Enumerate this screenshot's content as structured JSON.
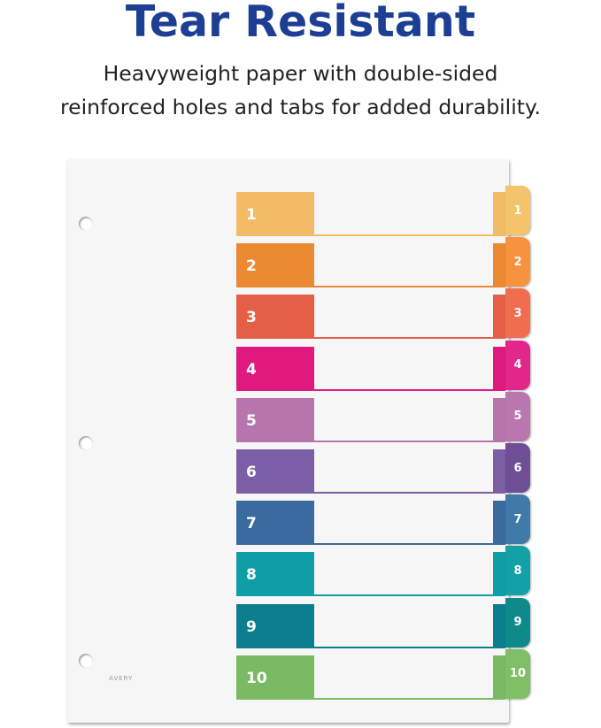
{
  "header": {
    "title": "Tear Resistant",
    "subtitle_line1": "Heavyweight paper with double-sided",
    "subtitle_line2": "reinforced holes and tabs for added durability."
  },
  "logo_text": "AVERY",
  "tabs": [
    {
      "label": "1",
      "color": "#f2bb66",
      "tab_color": "#f4c46a"
    },
    {
      "label": "2",
      "color": "#ec8a33",
      "tab_color": "#f7923e"
    },
    {
      "label": "3",
      "color": "#e45f45",
      "tab_color": "#f06e50"
    },
    {
      "label": "4",
      "color": "#e0197f",
      "tab_color": "#e3278a"
    },
    {
      "label": "5",
      "color": "#b675ad",
      "tab_color": "#b977b0"
    },
    {
      "label": "6",
      "color": "#7c5ea6",
      "tab_color": "#6e4f96"
    },
    {
      "label": "7",
      "color": "#3a6a9e",
      "tab_color": "#3f7aa8"
    },
    {
      "label": "8",
      "color": "#0f9ea6",
      "tab_color": "#12a1a6"
    },
    {
      "label": "9",
      "color": "#0b7f8e",
      "tab_color": "#0e8a8a"
    },
    {
      "label": "10",
      "color": "#7aba63",
      "tab_color": "#80bf66"
    }
  ]
}
